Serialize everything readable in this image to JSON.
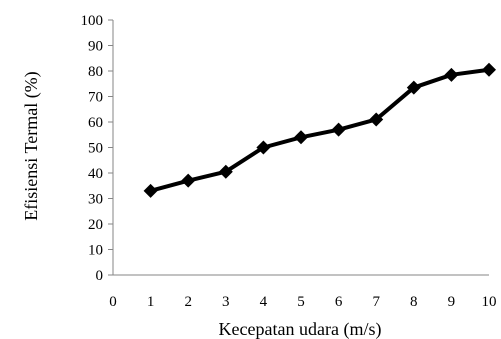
{
  "chart_data": {
    "type": "line",
    "title": "",
    "xlabel": "Kecepatan udara (m/s)",
    "ylabel": "Efisiensi Termal (%)",
    "xlim": [
      0,
      10
    ],
    "ylim": [
      0,
      100
    ],
    "x_ticks": [
      "0",
      "1",
      "2",
      "3",
      "4",
      "5",
      "6",
      "7",
      "8",
      "9",
      "10"
    ],
    "y_ticks": [
      "0",
      "10",
      "20",
      "30",
      "40",
      "50",
      "60",
      "70",
      "80",
      "90",
      "100"
    ],
    "grid": false,
    "legend": "none",
    "series": [
      {
        "x": [
          1,
          2,
          3,
          4,
          5,
          6,
          7,
          8,
          9,
          10
        ],
        "values": [
          33,
          37,
          40.5,
          50,
          54,
          57,
          61,
          73.5,
          78.5,
          80.5
        ],
        "color": "#000000",
        "marker": "diamond"
      }
    ]
  }
}
